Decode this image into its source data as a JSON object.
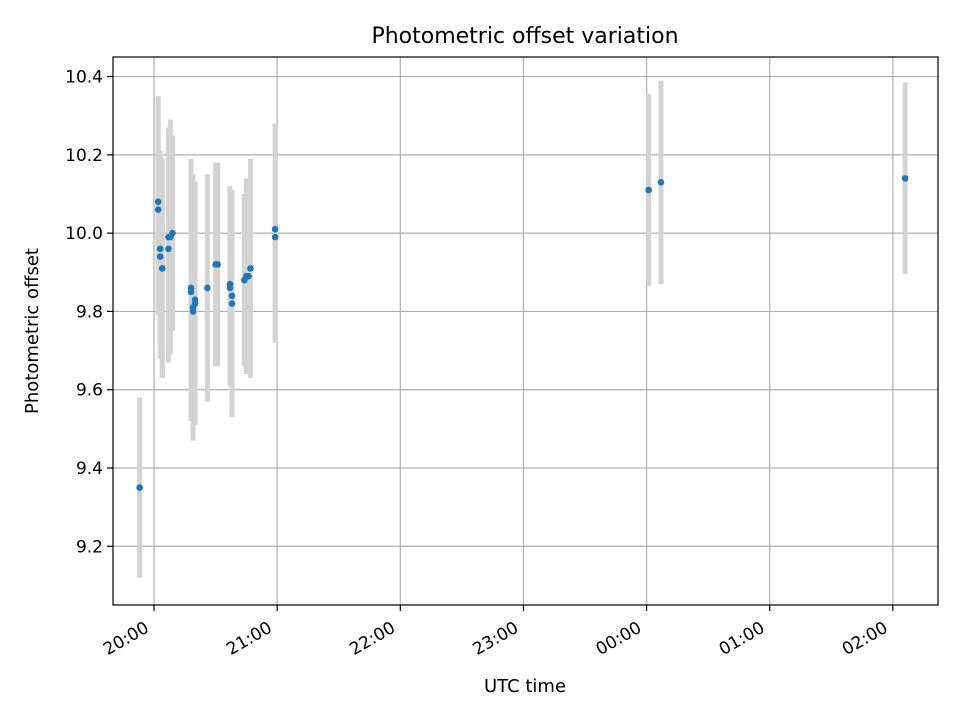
{
  "chart_data": {
    "type": "scatter",
    "title": "Photometric offset variation",
    "xlabel": "UTC time",
    "ylabel": "Photometric offset",
    "grid": true,
    "x_unit": "UTC time (HH:MM)",
    "xlim": [
      "19:40",
      "02:22"
    ],
    "ylim": [
      9.05,
      10.45
    ],
    "xticks": [
      "20:00",
      "21:00",
      "22:00",
      "23:00",
      "00:00",
      "01:00",
      "02:00"
    ],
    "yticks": [
      "9.2",
      "9.4",
      "9.6",
      "9.8",
      "10.0",
      "10.2",
      "10.4"
    ],
    "colors": {
      "marker": "#1f77b4",
      "errorbar": "#d3d3d3"
    },
    "points": [
      {
        "t": "19:53",
        "y": 9.35,
        "err": 0.23
      },
      {
        "t": "20:02",
        "y": 10.08,
        "err": 0.27
      },
      {
        "t": "20:02",
        "y": 10.06,
        "err": 0.27
      },
      {
        "t": "20:03",
        "y": 9.96,
        "err": 0.25
      },
      {
        "t": "20:03",
        "y": 9.94,
        "err": 0.26
      },
      {
        "t": "20:04",
        "y": 9.91,
        "err": 0.28
      },
      {
        "t": "20:04",
        "y": 9.91,
        "err": 0.28
      },
      {
        "t": "20:07",
        "y": 9.96,
        "err": 0.29
      },
      {
        "t": "20:07",
        "y": 9.99,
        "err": 0.28
      },
      {
        "t": "20:08",
        "y": 9.99,
        "err": 0.3
      },
      {
        "t": "20:09",
        "y": 10.0,
        "err": 0.25
      },
      {
        "t": "20:18",
        "y": 9.86,
        "err": 0.33
      },
      {
        "t": "20:18",
        "y": 9.85,
        "err": 0.33
      },
      {
        "t": "20:19",
        "y": 9.81,
        "err": 0.34
      },
      {
        "t": "20:19",
        "y": 9.8,
        "err": 0.3
      },
      {
        "t": "20:20",
        "y": 9.83,
        "err": 0.3
      },
      {
        "t": "20:20",
        "y": 9.82,
        "err": 0.31
      },
      {
        "t": "20:26",
        "y": 9.86,
        "err": 0.29
      },
      {
        "t": "20:30",
        "y": 9.92,
        "err": 0.26
      },
      {
        "t": "20:31",
        "y": 9.92,
        "err": 0.26
      },
      {
        "t": "20:37",
        "y": 9.87,
        "err": 0.25
      },
      {
        "t": "20:37",
        "y": 9.86,
        "err": 0.25
      },
      {
        "t": "20:38",
        "y": 9.82,
        "err": 0.29
      },
      {
        "t": "20:38",
        "y": 9.84,
        "err": 0.27
      },
      {
        "t": "20:44",
        "y": 9.88,
        "err": 0.22
      },
      {
        "t": "20:45",
        "y": 9.89,
        "err": 0.25
      },
      {
        "t": "20:46",
        "y": 9.89,
        "err": 0.25
      },
      {
        "t": "20:47",
        "y": 9.91,
        "err": 0.28
      },
      {
        "t": "20:59",
        "y": 10.01,
        "err": 0.27
      },
      {
        "t": "20:59",
        "y": 9.99,
        "err": 0.27
      },
      {
        "t": "00:01",
        "y": 10.11,
        "err": 0.245
      },
      {
        "t": "00:07",
        "y": 10.13,
        "err": 0.26
      },
      {
        "t": "02:06",
        "y": 10.14,
        "err": 0.245
      }
    ]
  }
}
